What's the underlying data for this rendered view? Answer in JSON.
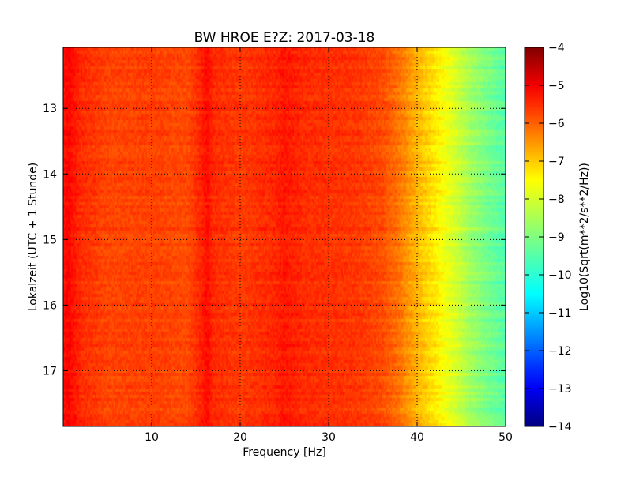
{
  "chart_data": {
    "type": "heatmap",
    "title": "BW HROE E?Z: 2017-03-18",
    "xlabel": "Frequency [Hz]",
    "ylabel": "Lokalzeit (UTC + 1 Stunde)",
    "xlim": [
      0,
      50
    ],
    "ylim": [
      17.85,
      12.07
    ],
    "x_ticks": [
      10,
      20,
      30,
      40,
      50
    ],
    "y_ticks": [
      13,
      14,
      15,
      16,
      17
    ],
    "grid": true,
    "grid_style": "dotted",
    "colorbar": {
      "label": "Log10(Sqrt(m**2/s**2/Hz))",
      "range": [
        -14,
        -4
      ],
      "ticks": [
        -4,
        -5,
        -6,
        -7,
        -8,
        -9,
        -10,
        -11,
        -12,
        -13,
        -14
      ],
      "colormap": "jet"
    },
    "spectral_profile": {
      "frequency_hz": [
        0,
        0.5,
        2,
        5,
        10,
        14,
        15.5,
        16.3,
        17,
        20,
        24,
        25,
        27,
        30,
        33,
        36,
        38,
        40,
        42,
        44,
        46,
        48,
        50
      ],
      "log_amplitude": [
        -5.3,
        -5.1,
        -5.5,
        -5.75,
        -5.7,
        -5.8,
        -5.45,
        -5.2,
        -5.5,
        -5.65,
        -5.45,
        -5.3,
        -5.5,
        -5.55,
        -5.6,
        -5.8,
        -6.2,
        -6.8,
        -7.3,
        -7.9,
        -8.6,
        -9.1,
        -9.5
      ]
    },
    "colors": {
      "jet": [
        "#000080",
        "#0000ff",
        "#00ffff",
        "#ffff00",
        "#ff0000",
        "#800000"
      ]
    }
  }
}
